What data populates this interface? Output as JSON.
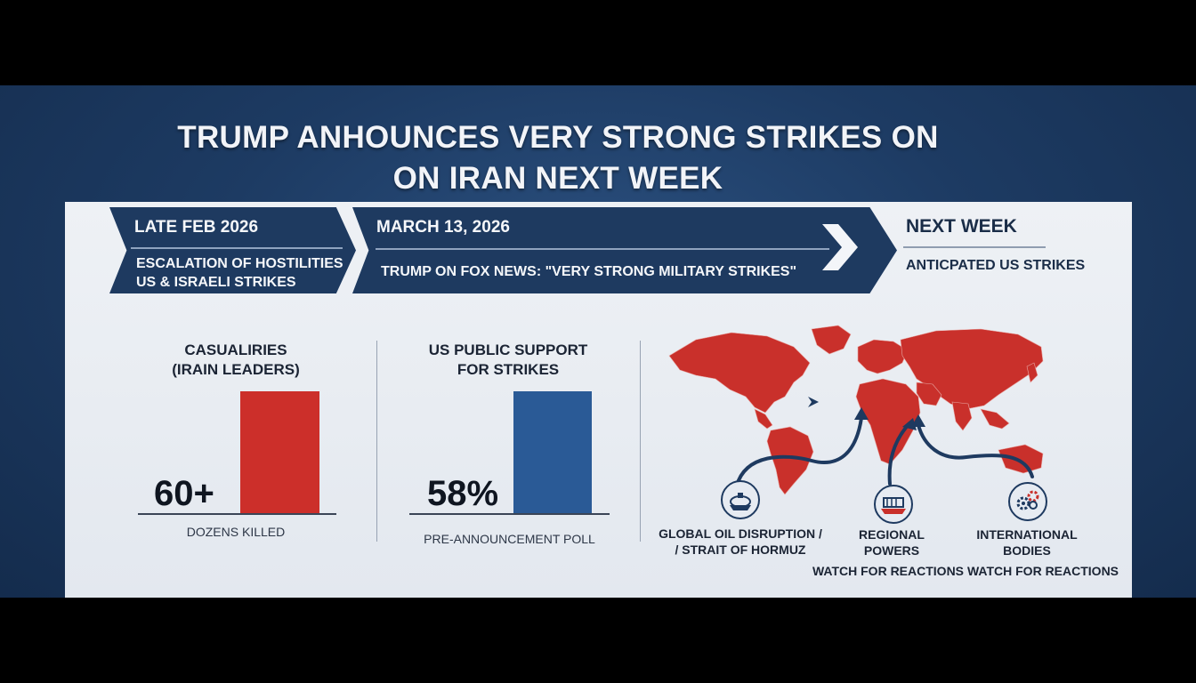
{
  "headline": {
    "line1": "TRUMP ANHOUNCES VERY STRONG STRIKES ON",
    "line2": "ON IRAN NEXT WEEK"
  },
  "timeline": [
    {
      "date": "LATE FEB 2026",
      "desc_line1": "ESCALATION OF HOSTILITIES",
      "desc_line2": "US & ISRAELI STRIKES"
    },
    {
      "date": "MARCH 13, 2026",
      "desc_line1": "TRUMP ON FOX NEWS: \"VERY STRONG MILITARY STRIKES\""
    },
    {
      "date": "NEXT WEEK",
      "desc_line1": "ANTICPATED US STRIKES"
    }
  ],
  "stats": [
    {
      "title_line1": "CASUALIRIES",
      "title_line2": "(IRAIN LEADERS)",
      "value": "60+",
      "caption": "DOZENS KILLED",
      "color": "#cc2f2a"
    },
    {
      "title_line1": "US PUBLIC SUPPORT",
      "title_line2": "FOR STRIKES",
      "value": "58%",
      "caption": "PRE-ANNOUNCEMENT POLL",
      "color": "#2a5a96"
    }
  ],
  "map": {
    "land_color": "#c9302b",
    "icons": [
      "oil-tanker-icon",
      "ship-icon",
      "gears-icon"
    ],
    "labels": [
      {
        "line1": "GLOBAL OIL DISRUPTION /",
        "line2": "/ STRAIT OF HORMUZ"
      },
      {
        "line1": "REGIONAL",
        "line2": "POWERS",
        "line3": "WATCH FOR REACTIONS"
      },
      {
        "line1": "INTERNATIONAL",
        "line2": "BODIES",
        "line3": "WATCH FOR REACTIONS"
      }
    ]
  },
  "colors": {
    "background": "#1d3b63",
    "ribbon": "#1e3a60",
    "panel": "#e9edf2"
  }
}
